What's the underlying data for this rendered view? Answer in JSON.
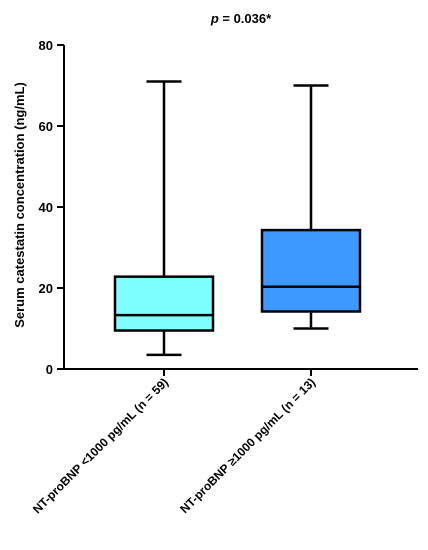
{
  "chart_data": {
    "type": "box",
    "title": "",
    "annotation": {
      "p_label": "p",
      "p_value_text": " = 0.036*"
    },
    "ylabel": "Serum catestatin concentration (ng/mL)",
    "xlabel": "",
    "ylim": [
      0,
      80
    ],
    "yticks": [
      0,
      20,
      40,
      60,
      80
    ],
    "categories": [
      "NT-proBNP <1000 pg/mL (n = 59)",
      "NT-proBNP ≥1000 pg/mL  (n = 13)"
    ],
    "series": [
      {
        "category": "NT-proBNP <1000 pg/mL (n = 59)",
        "min": 3.5,
        "q1": 9.5,
        "median": 13.3,
        "q3": 22.8,
        "max": 71,
        "color": "#7FFFFF"
      },
      {
        "category": "NT-proBNP ≥1000 pg/mL  (n = 13)",
        "min": 10,
        "q1": 14.2,
        "median": 20.3,
        "q3": 34.3,
        "max": 70,
        "color": "#3E98FF"
      }
    ],
    "grid": false,
    "legend": "none"
  }
}
